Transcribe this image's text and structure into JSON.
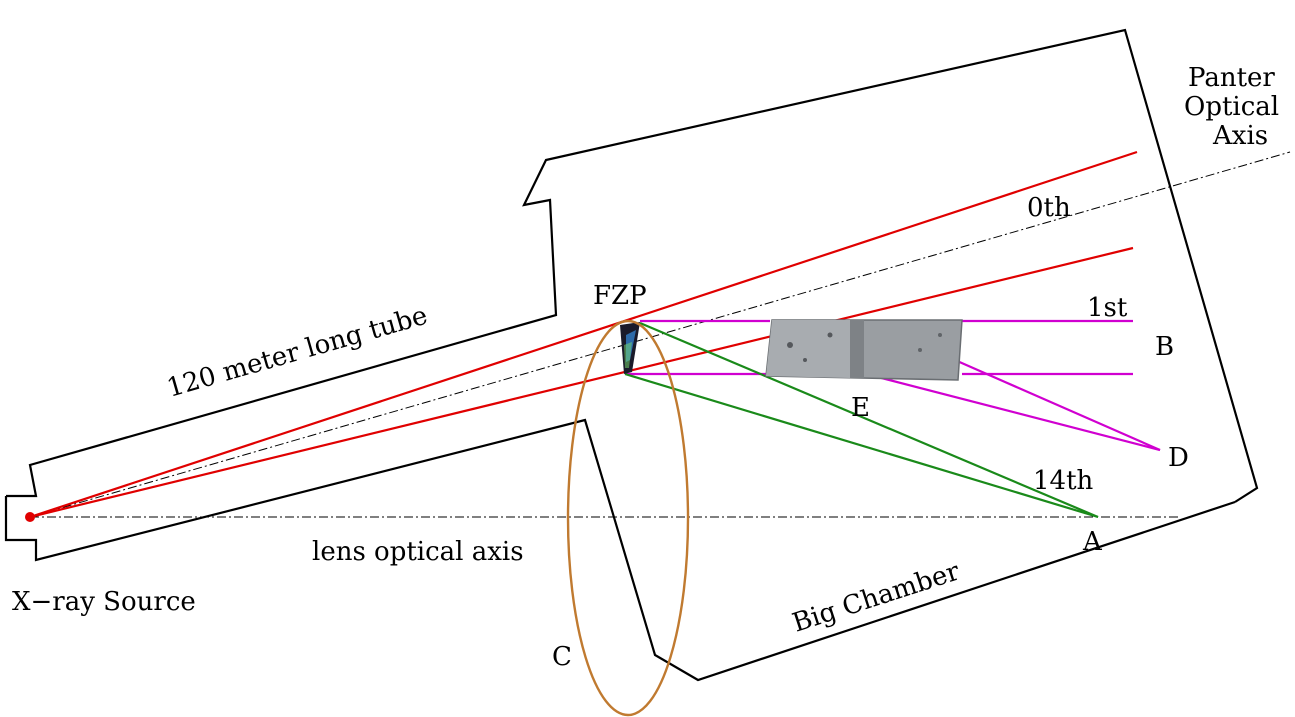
{
  "labels": {
    "panter_line1": "Panter",
    "panter_line2": "Optical",
    "panter_line3": "Axis",
    "zeroth": "0th",
    "first": "1st",
    "fzp": "FZP",
    "tube": "120 meter long tube",
    "b": "B",
    "e": "E",
    "d": "D",
    "fourteenth": "14th",
    "a": "A",
    "lens_axis": "lens optical axis",
    "source": "X−ray Source",
    "chamber": "Big Chamber",
    "c": "C"
  },
  "colors": {
    "zeroth_order": "#e00000",
    "first_order": "#d000d0",
    "fourteenth_order": "#1a8a1a",
    "ellipse": "#c07a30",
    "source_dot": "#e00000"
  }
}
